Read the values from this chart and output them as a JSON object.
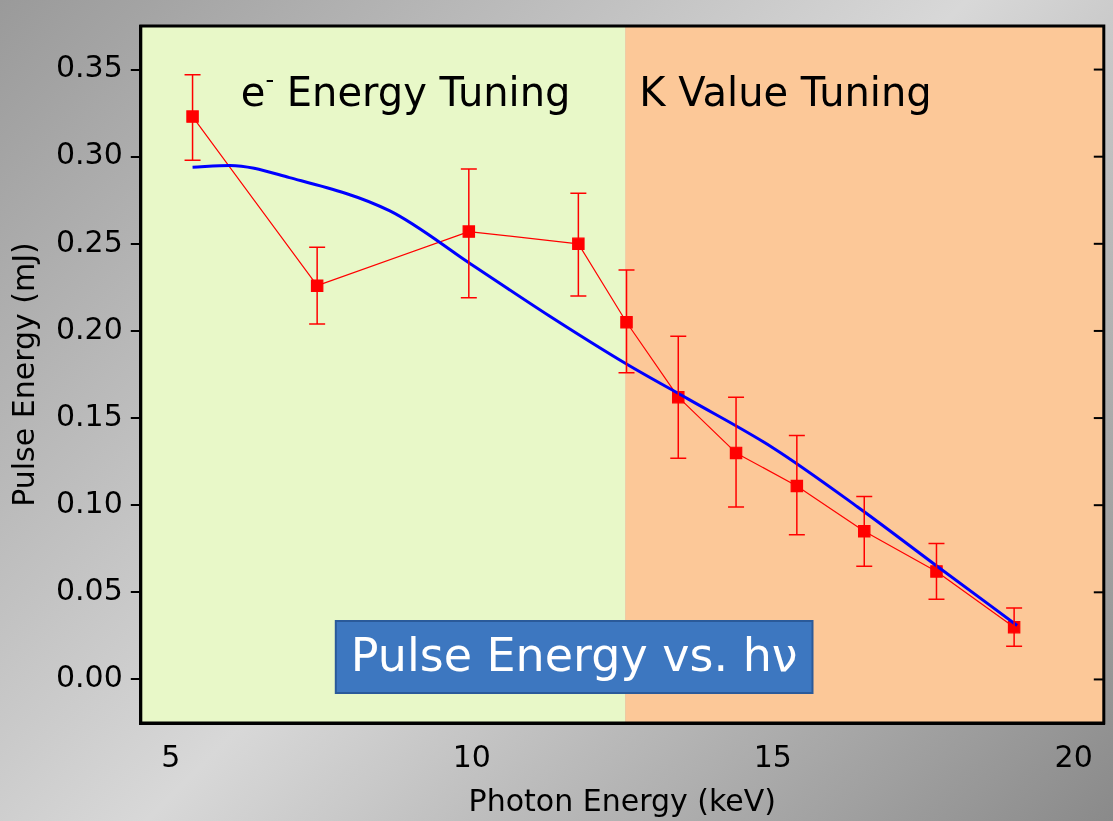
{
  "chart_data": {
    "type": "line",
    "xlabel": "Photon Energy (keV)",
    "ylabel": "Pulse Energy (mJ)",
    "xlim": [
      4.5,
      20.5
    ],
    "xticks": [
      5,
      10,
      15,
      20
    ],
    "ylim": [
      -0.025,
      0.375
    ],
    "yticks": [
      {
        "value": 0,
        "label": "0.00"
      },
      {
        "value": 0.05,
        "label": "0.05"
      },
      {
        "value": 0.1,
        "label": "0.10"
      },
      {
        "value": 0.15,
        "label": "0.15"
      },
      {
        "value": 0.2,
        "label": "0.20"
      },
      {
        "value": 0.25,
        "label": "0.25"
      },
      {
        "value": 0.3,
        "label": "0.30"
      },
      {
        "value": 0.35,
        "label": "0.35"
      }
    ],
    "grid": false,
    "legend": false,
    "series": [
      {
        "color": "#ff0000",
        "marker": "square",
        "x": [
          5.36,
          7.43,
          9.95,
          11.77,
          12.57,
          13.43,
          14.39,
          15.4,
          16.52,
          17.72,
          19.01
        ],
        "values": [
          0.323,
          0.226,
          0.257,
          0.25,
          0.205,
          0.162,
          0.13,
          0.111,
          0.085,
          0.062,
          0.03
        ],
        "errors": [
          [
            0.298,
            0.347
          ],
          [
            0.204,
            0.248
          ],
          [
            0.219,
            0.293
          ],
          [
            0.22,
            0.279
          ],
          [
            0.176,
            0.235
          ],
          [
            0.127,
            0.197
          ],
          [
            0.099,
            0.162
          ],
          [
            0.083,
            0.14
          ],
          [
            0.065,
            0.105
          ],
          [
            0.046,
            0.078
          ],
          [
            0.019,
            0.041
          ]
        ]
      },
      {
        "color": "#0000ff",
        "marker": "none",
        "x": [
          5.36,
          5.98,
          6.97,
          8.63,
          10,
          11.27,
          12.57,
          13.59,
          15,
          16.41,
          17.73,
          19.06
        ],
        "values": [
          0.294,
          0.295,
          0.288,
          0.269,
          0.238,
          0.209,
          0.181,
          0.161,
          0.133,
          0.099,
          0.065,
          0.031
        ]
      }
    ],
    "bands": [
      {
        "axis": "x",
        "from": 4.5,
        "to": 12.55,
        "label": "e$^{-}$ Energy Tuning",
        "color": "#e8f8c8"
      },
      {
        "axis": "x",
        "from": 12.55,
        "to": 20.5,
        "label": "K Value Tuning",
        "color": "#fcc898"
      }
    ],
    "annotations": [
      "Pulse Energy vs. hν"
    ]
  }
}
